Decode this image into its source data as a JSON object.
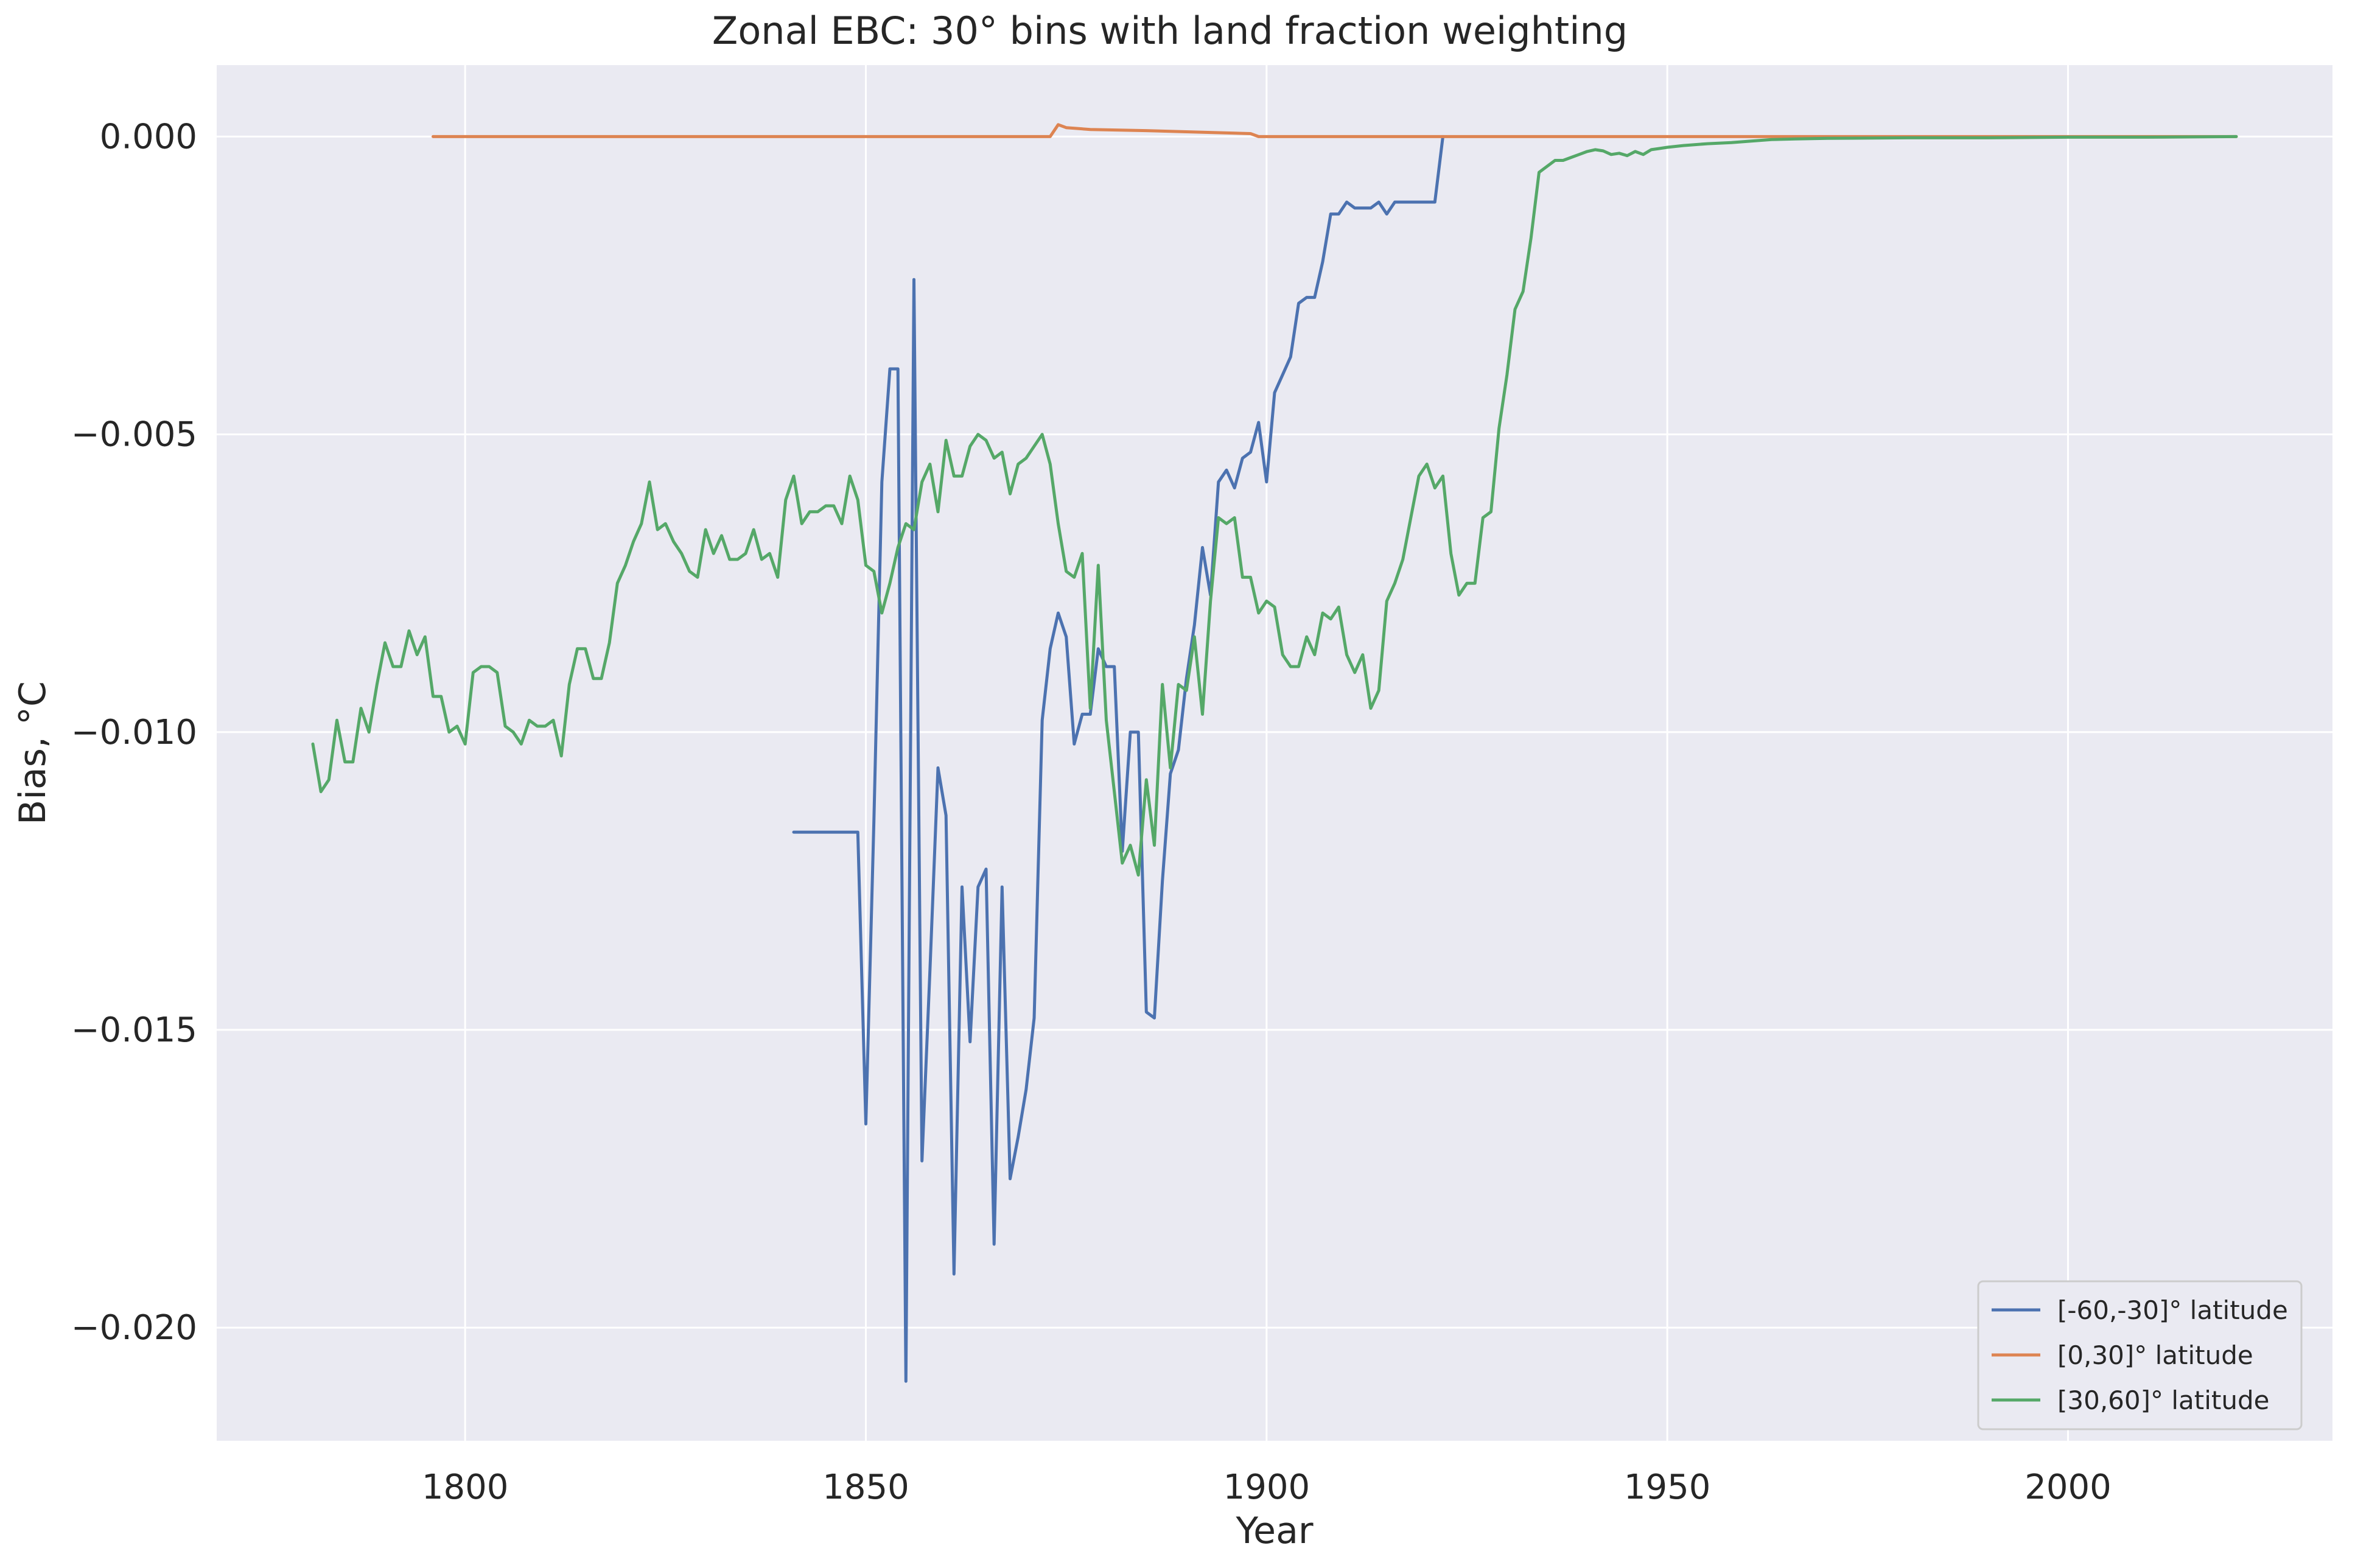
{
  "chart_data": {
    "type": "line",
    "title": "Zonal EBC: 30° bins with land fraction weighting",
    "xlabel": "Year",
    "ylabel": "Bias, °C",
    "xlim": [
      1769,
      2033
    ],
    "ylim": [
      -0.0219,
      0.0012
    ],
    "xticks": [
      1800,
      1850,
      1900,
      1950,
      2000
    ],
    "xtick_labels": [
      "1800",
      "1850",
      "1900",
      "1950",
      "2000"
    ],
    "yticks": [
      0.0,
      -0.005,
      -0.01,
      -0.015,
      -0.02
    ],
    "ytick_labels": [
      "0.000",
      "−0.005",
      "−0.010",
      "−0.015",
      "−0.020"
    ],
    "grid": true,
    "legend_position": "lower right",
    "background": "#eaeaf2",
    "series": [
      {
        "name": "[-60,-30]° latitude",
        "color": "#4c72b0",
        "points": [
          [
            1841,
            -0.01168
          ],
          [
            1842,
            -0.01168
          ],
          [
            1843,
            -0.01168
          ],
          [
            1844,
            -0.01168
          ],
          [
            1845,
            -0.01168
          ],
          [
            1846,
            -0.01168
          ],
          [
            1847,
            -0.01168
          ],
          [
            1848,
            -0.01168
          ],
          [
            1849,
            -0.01168
          ],
          [
            1850,
            -0.01658
          ],
          [
            1851,
            -0.0115
          ],
          [
            1852,
            -0.0058
          ],
          [
            1853,
            -0.0039
          ],
          [
            1854,
            -0.0039
          ],
          [
            1855,
            -0.0209
          ],
          [
            1856,
            -0.0024
          ],
          [
            1857,
            -0.0172
          ],
          [
            1858,
            -0.014
          ],
          [
            1859,
            -0.0106
          ],
          [
            1860,
            -0.0114
          ],
          [
            1861,
            -0.0191
          ],
          [
            1862,
            -0.0126
          ],
          [
            1863,
            -0.0152
          ],
          [
            1864,
            -0.0126
          ],
          [
            1865,
            -0.0123
          ],
          [
            1866,
            -0.0186
          ],
          [
            1867,
            -0.0126
          ],
          [
            1868,
            -0.0175
          ],
          [
            1869,
            -0.0168
          ],
          [
            1870,
            -0.016
          ],
          [
            1871,
            -0.0148
          ],
          [
            1872,
            -0.0098
          ],
          [
            1873,
            -0.0086
          ],
          [
            1874,
            -0.008
          ],
          [
            1875,
            -0.0084
          ],
          [
            1876,
            -0.0102
          ],
          [
            1877,
            -0.0097
          ],
          [
            1878,
            -0.0097
          ],
          [
            1879,
            -0.0086
          ],
          [
            1880,
            -0.0089
          ],
          [
            1881,
            -0.0089
          ],
          [
            1882,
            -0.012
          ],
          [
            1883,
            -0.01
          ],
          [
            1884,
            -0.01
          ],
          [
            1885,
            -0.0147
          ],
          [
            1886,
            -0.0148
          ],
          [
            1887,
            -0.0125
          ],
          [
            1888,
            -0.0107
          ],
          [
            1889,
            -0.0103
          ],
          [
            1890,
            -0.0091
          ],
          [
            1891,
            -0.0082
          ],
          [
            1892,
            -0.0069
          ],
          [
            1893,
            -0.0077
          ],
          [
            1894,
            -0.0058
          ],
          [
            1895,
            -0.0056
          ],
          [
            1896,
            -0.0059
          ],
          [
            1897,
            -0.0054
          ],
          [
            1898,
            -0.0053
          ],
          [
            1899,
            -0.0048
          ],
          [
            1900,
            -0.0058
          ],
          [
            1901,
            -0.0043
          ],
          [
            1902,
            -0.004
          ],
          [
            1903,
            -0.0037
          ],
          [
            1904,
            -0.0028
          ],
          [
            1905,
            -0.0027
          ],
          [
            1906,
            -0.0027
          ],
          [
            1907,
            -0.0021
          ],
          [
            1908,
            -0.0013
          ],
          [
            1909,
            -0.0013
          ],
          [
            1910,
            -0.0011
          ],
          [
            1911,
            -0.0012
          ],
          [
            1912,
            -0.0012
          ],
          [
            1913,
            -0.0012
          ],
          [
            1914,
            -0.0011
          ],
          [
            1915,
            -0.0013
          ],
          [
            1916,
            -0.0011
          ],
          [
            1917,
            -0.0011
          ],
          [
            1918,
            -0.0011
          ],
          [
            1919,
            -0.0011
          ],
          [
            1920,
            -0.0011
          ],
          [
            1921,
            -0.0011
          ],
          [
            1922,
            0.0
          ]
        ]
      },
      {
        "name": "[0,30]° latitude",
        "color": "#dd8452",
        "points": [
          [
            1796,
            0.0
          ],
          [
            1820,
            0.0
          ],
          [
            1850,
            0.0
          ],
          [
            1873,
            0.0
          ],
          [
            1874,
            0.0002
          ],
          [
            1875,
            0.00015
          ],
          [
            1878,
            0.00012
          ],
          [
            1885,
            0.0001
          ],
          [
            1893,
            7e-05
          ],
          [
            1898,
            5e-05
          ],
          [
            1899,
            0.0
          ],
          [
            1950,
            0.0
          ],
          [
            1990,
            0.0
          ],
          [
            2021,
            0.0
          ]
        ]
      },
      {
        "name": "[30,60]° latitude",
        "color": "#55a868",
        "points": [
          [
            1781,
            -0.0102
          ],
          [
            1782,
            -0.011
          ],
          [
            1783,
            -0.0108
          ],
          [
            1784,
            -0.0098
          ],
          [
            1785,
            -0.0105
          ],
          [
            1786,
            -0.0105
          ],
          [
            1787,
            -0.0096
          ],
          [
            1788,
            -0.01
          ],
          [
            1789,
            -0.0092
          ],
          [
            1790,
            -0.0085
          ],
          [
            1791,
            -0.0089
          ],
          [
            1792,
            -0.0089
          ],
          [
            1793,
            -0.0083
          ],
          [
            1794,
            -0.0087
          ],
          [
            1795,
            -0.0084
          ],
          [
            1796,
            -0.0094
          ],
          [
            1797,
            -0.0094
          ],
          [
            1798,
            -0.01
          ],
          [
            1799,
            -0.0099
          ],
          [
            1800,
            -0.0102
          ],
          [
            1801,
            -0.009
          ],
          [
            1802,
            -0.0089
          ],
          [
            1803,
            -0.0089
          ],
          [
            1804,
            -0.009
          ],
          [
            1805,
            -0.0099
          ],
          [
            1806,
            -0.01
          ],
          [
            1807,
            -0.0102
          ],
          [
            1808,
            -0.0098
          ],
          [
            1809,
            -0.0099
          ],
          [
            1810,
            -0.0099
          ],
          [
            1811,
            -0.0098
          ],
          [
            1812,
            -0.0104
          ],
          [
            1813,
            -0.0092
          ],
          [
            1814,
            -0.0086
          ],
          [
            1815,
            -0.0086
          ],
          [
            1816,
            -0.0091
          ],
          [
            1817,
            -0.0091
          ],
          [
            1818,
            -0.0085
          ],
          [
            1819,
            -0.0075
          ],
          [
            1820,
            -0.0072
          ],
          [
            1821,
            -0.0068
          ],
          [
            1822,
            -0.0065
          ],
          [
            1823,
            -0.0058
          ],
          [
            1824,
            -0.0066
          ],
          [
            1825,
            -0.0065
          ],
          [
            1826,
            -0.0068
          ],
          [
            1827,
            -0.007
          ],
          [
            1828,
            -0.0073
          ],
          [
            1829,
            -0.0074
          ],
          [
            1830,
            -0.0066
          ],
          [
            1831,
            -0.007
          ],
          [
            1832,
            -0.0067
          ],
          [
            1833,
            -0.0071
          ],
          [
            1834,
            -0.0071
          ],
          [
            1835,
            -0.007
          ],
          [
            1836,
            -0.0066
          ],
          [
            1837,
            -0.0071
          ],
          [
            1838,
            -0.007
          ],
          [
            1839,
            -0.0074
          ],
          [
            1840,
            -0.0061
          ],
          [
            1841,
            -0.0057
          ],
          [
            1842,
            -0.0065
          ],
          [
            1843,
            -0.0063
          ],
          [
            1844,
            -0.0063
          ],
          [
            1845,
            -0.0062
          ],
          [
            1846,
            -0.0062
          ],
          [
            1847,
            -0.0065
          ],
          [
            1848,
            -0.0057
          ],
          [
            1849,
            -0.0061
          ],
          [
            1850,
            -0.0072
          ],
          [
            1851,
            -0.0073
          ],
          [
            1852,
            -0.008
          ],
          [
            1853,
            -0.0075
          ],
          [
            1854,
            -0.0069
          ],
          [
            1855,
            -0.0065
          ],
          [
            1856,
            -0.0066
          ],
          [
            1857,
            -0.0058
          ],
          [
            1858,
            -0.0055
          ],
          [
            1859,
            -0.0063
          ],
          [
            1860,
            -0.0051
          ],
          [
            1861,
            -0.0057
          ],
          [
            1862,
            -0.0057
          ],
          [
            1863,
            -0.0052
          ],
          [
            1864,
            -0.005
          ],
          [
            1865,
            -0.0051
          ],
          [
            1866,
            -0.0054
          ],
          [
            1867,
            -0.0053
          ],
          [
            1868,
            -0.006
          ],
          [
            1869,
            -0.0055
          ],
          [
            1870,
            -0.0054
          ],
          [
            1871,
            -0.0052
          ],
          [
            1872,
            -0.005
          ],
          [
            1873,
            -0.0055
          ],
          [
            1874,
            -0.0065
          ],
          [
            1875,
            -0.0073
          ],
          [
            1876,
            -0.0074
          ],
          [
            1877,
            -0.007
          ],
          [
            1878,
            -0.0096
          ],
          [
            1879,
            -0.0072
          ],
          [
            1880,
            -0.0098
          ],
          [
            1881,
            -0.011
          ],
          [
            1882,
            -0.0122
          ],
          [
            1883,
            -0.0119
          ],
          [
            1884,
            -0.0124
          ],
          [
            1885,
            -0.0108
          ],
          [
            1886,
            -0.0119
          ],
          [
            1887,
            -0.0092
          ],
          [
            1888,
            -0.0106
          ],
          [
            1889,
            -0.0092
          ],
          [
            1890,
            -0.0093
          ],
          [
            1891,
            -0.0084
          ],
          [
            1892,
            -0.0097
          ],
          [
            1893,
            -0.0078
          ],
          [
            1894,
            -0.0064
          ],
          [
            1895,
            -0.0065
          ],
          [
            1896,
            -0.0064
          ],
          [
            1897,
            -0.0074
          ],
          [
            1898,
            -0.0074
          ],
          [
            1899,
            -0.008
          ],
          [
            1900,
            -0.0078
          ],
          [
            1901,
            -0.0079
          ],
          [
            1902,
            -0.0087
          ],
          [
            1903,
            -0.0089
          ],
          [
            1904,
            -0.0089
          ],
          [
            1905,
            -0.0084
          ],
          [
            1906,
            -0.0087
          ],
          [
            1907,
            -0.008
          ],
          [
            1908,
            -0.0081
          ],
          [
            1909,
            -0.0079
          ],
          [
            1910,
            -0.0087
          ],
          [
            1911,
            -0.009
          ],
          [
            1912,
            -0.0087
          ],
          [
            1913,
            -0.0096
          ],
          [
            1914,
            -0.0093
          ],
          [
            1915,
            -0.0078
          ],
          [
            1916,
            -0.0075
          ],
          [
            1917,
            -0.0071
          ],
          [
            1918,
            -0.0064
          ],
          [
            1919,
            -0.0057
          ],
          [
            1920,
            -0.0055
          ],
          [
            1921,
            -0.0059
          ],
          [
            1922,
            -0.0057
          ],
          [
            1923,
            -0.007
          ],
          [
            1924,
            -0.0077
          ],
          [
            1925,
            -0.0075
          ],
          [
            1926,
            -0.0075
          ],
          [
            1927,
            -0.0064
          ],
          [
            1928,
            -0.0063
          ],
          [
            1929,
            -0.0049
          ],
          [
            1930,
            -0.004
          ],
          [
            1931,
            -0.0029
          ],
          [
            1932,
            -0.0026
          ],
          [
            1933,
            -0.0017
          ],
          [
            1934,
            -0.0006
          ],
          [
            1935,
            -0.0005
          ],
          [
            1936,
            -0.0004
          ],
          [
            1937,
            -0.0004
          ],
          [
            1938,
            -0.00035
          ],
          [
            1939,
            -0.0003
          ],
          [
            1940,
            -0.00025
          ],
          [
            1941,
            -0.00022
          ],
          [
            1942,
            -0.00024
          ],
          [
            1943,
            -0.0003
          ],
          [
            1944,
            -0.00028
          ],
          [
            1945,
            -0.00032
          ],
          [
            1946,
            -0.00025
          ],
          [
            1947,
            -0.0003
          ],
          [
            1948,
            -0.00022
          ],
          [
            1949,
            -0.0002
          ],
          [
            1950,
            -0.00018
          ],
          [
            1952,
            -0.00015
          ],
          [
            1955,
            -0.00012
          ],
          [
            1958,
            -0.0001
          ],
          [
            1960,
            -8e-05
          ],
          [
            1963,
            -5e-05
          ],
          [
            1966,
            -4e-05
          ],
          [
            1970,
            -3e-05
          ],
          [
            1980,
            -2e-05
          ],
          [
            1990,
            -2e-05
          ],
          [
            2000,
            -1e-05
          ],
          [
            2010,
            -1e-05
          ],
          [
            2021,
            0.0
          ]
        ]
      }
    ]
  }
}
